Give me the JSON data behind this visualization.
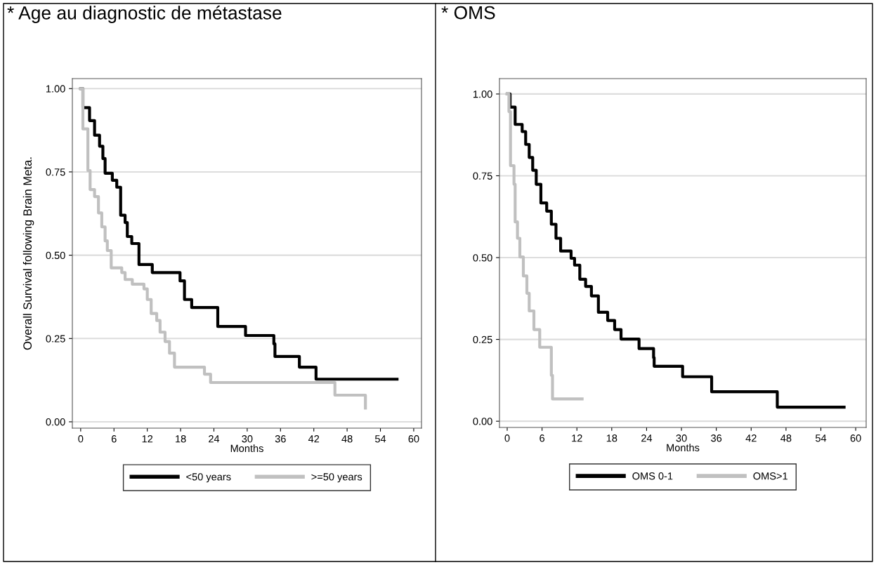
{
  "chart_data": [
    {
      "type": "step",
      "title": "* Age au diagnostic de métastase",
      "xlabel": "Months",
      "ylabel": "Overall Survival following Brain Meta.",
      "xlim": [
        -1.5,
        61.4
      ],
      "ylim": [
        -0.019,
        1.03
      ],
      "xticks": [
        0,
        6,
        12,
        18,
        24,
        30,
        36,
        42,
        48,
        54,
        60
      ],
      "yticks": [
        {
          "value": 0,
          "label": "0.00"
        },
        {
          "value": 0.25,
          "label": "0.25"
        },
        {
          "value": 0.5,
          "label": "0.50"
        },
        {
          "value": 0.75,
          "label": "0.75"
        },
        {
          "value": 1,
          "label": "1.00"
        }
      ],
      "grid": "y",
      "legend": "bottom",
      "series": [
        {
          "name": "<50 years",
          "color": "#000000",
          "x": [
            0,
            0.4,
            1.6,
            2.5,
            3.4,
            4.0,
            4.4,
            5.7,
            6.5,
            7.2,
            8.0,
            8.4,
            9.2,
            10.5,
            12.9,
            17.9,
            18.7,
            20.0,
            24.7,
            29.7,
            34.8,
            35.0,
            39.4,
            42.4,
            57.0
          ],
          "values": [
            1.0,
            0.943,
            0.904,
            0.86,
            0.827,
            0.79,
            0.746,
            0.725,
            0.704,
            0.62,
            0.598,
            0.556,
            0.535,
            0.472,
            0.448,
            0.423,
            0.367,
            0.343,
            0.286,
            0.259,
            0.234,
            0.196,
            0.164,
            0.128,
            0.128
          ]
        },
        {
          "name": ">=50 years",
          "color": "#c0c0c0",
          "x": [
            0,
            0.4,
            1.3,
            1.7,
            2.5,
            3.2,
            3.8,
            4.4,
            4.8,
            5.5,
            7.4,
            8.0,
            9.3,
            11.4,
            12.0,
            12.7,
            13.7,
            14.3,
            15.2,
            16.0,
            16.9,
            22.3,
            23.4,
            45.8,
            51.3
          ],
          "values": [
            1.0,
            0.879,
            0.754,
            0.697,
            0.676,
            0.627,
            0.585,
            0.543,
            0.514,
            0.462,
            0.448,
            0.427,
            0.413,
            0.399,
            0.367,
            0.325,
            0.304,
            0.269,
            0.241,
            0.206,
            0.164,
            0.143,
            0.118,
            0.08,
            0.041
          ]
        }
      ]
    },
    {
      "type": "step",
      "title": "* OMS",
      "xlabel": "Months",
      "xlim": [
        -1.33,
        61.8
      ],
      "ylim": [
        -0.019,
        1.047
      ],
      "xticks": [
        0,
        6,
        12,
        18,
        24,
        30,
        36,
        42,
        48,
        54,
        60
      ],
      "yticks": [
        {
          "value": 0,
          "label": "0.00"
        },
        {
          "value": 0.25,
          "label": "0.25"
        },
        {
          "value": 0.5,
          "label": "0.50"
        },
        {
          "value": 0.75,
          "label": "0.75"
        },
        {
          "value": 1,
          "label": "1.00"
        }
      ],
      "grid": "y",
      "legend": "bottom",
      "series": [
        {
          "name": "OMS 0-1",
          "color": "#000000",
          "x": [
            0,
            0.5,
            1.37,
            2.58,
            3.18,
            3.79,
            4.39,
            5.0,
            5.8,
            6.8,
            7.6,
            8.4,
            9.2,
            11.0,
            11.6,
            12.5,
            13.5,
            14.5,
            15.7,
            17.3,
            18.5,
            19.6,
            22.7,
            25.2,
            25.3,
            30.2,
            35.2,
            46.5,
            58.0
          ],
          "values": [
            1.0,
            0.96,
            0.907,
            0.885,
            0.846,
            0.806,
            0.767,
            0.724,
            0.667,
            0.642,
            0.602,
            0.559,
            0.52,
            0.498,
            0.477,
            0.434,
            0.412,
            0.383,
            0.333,
            0.308,
            0.28,
            0.251,
            0.222,
            0.194,
            0.168,
            0.136,
            0.09,
            0.043,
            0.043
          ]
        },
        {
          "name": "OMS>1",
          "color": "#c0c0c0",
          "x": [
            0,
            0.3,
            0.57,
            1.17,
            1.37,
            1.77,
            2.18,
            2.78,
            3.39,
            3.79,
            4.6,
            5.6,
            7.6,
            7.8,
            12.9
          ],
          "values": [
            1.0,
            0.946,
            0.781,
            0.724,
            0.609,
            0.559,
            0.502,
            0.444,
            0.391,
            0.337,
            0.28,
            0.226,
            0.14,
            0.068,
            0.068
          ]
        }
      ]
    }
  ]
}
